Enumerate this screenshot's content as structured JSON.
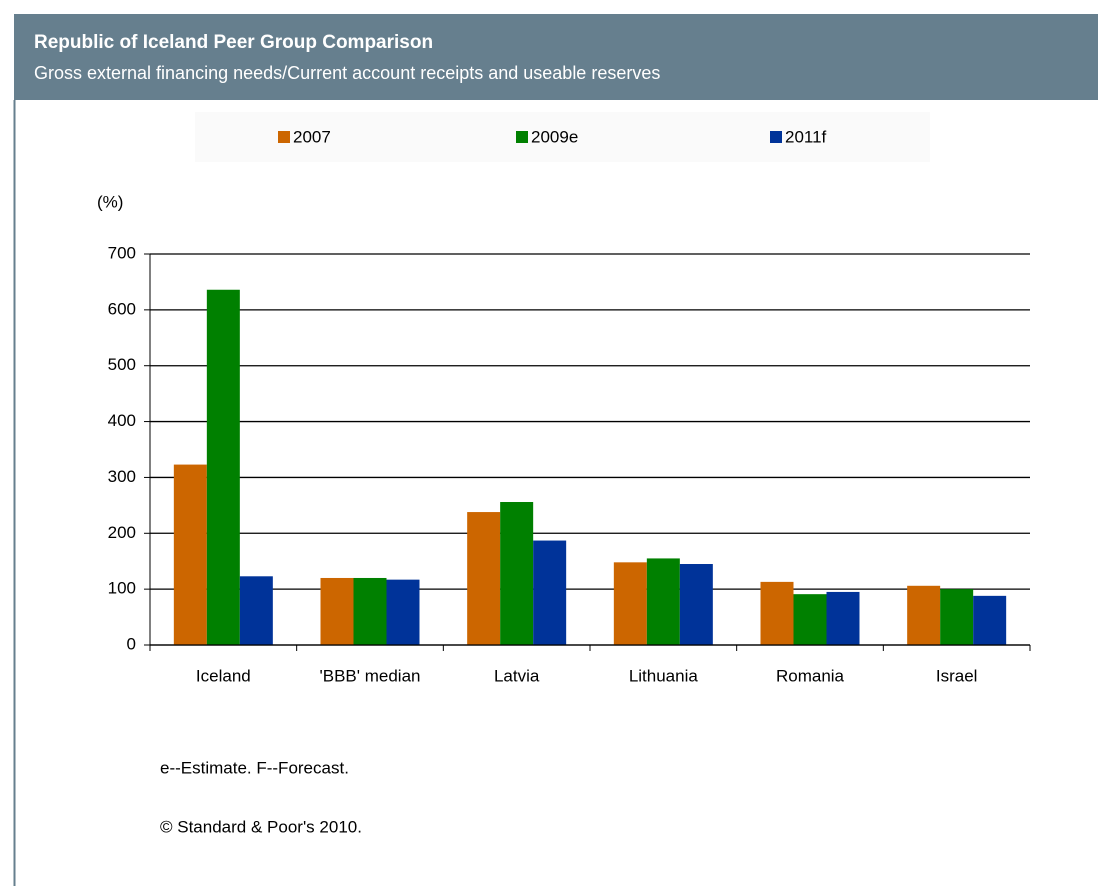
{
  "chart_data": {
    "type": "bar",
    "title": "Republic of Iceland Peer Group Comparison",
    "subtitle": "Gross external financing needs/Current account receipts and useable reserves",
    "y_label": "(%)",
    "categories": [
      "Iceland",
      "'BBB' median",
      "Latvia",
      "Lithuania",
      "Romania",
      "Israel"
    ],
    "series": [
      {
        "name": "2007",
        "color": "#cc6600",
        "values": [
          323,
          120,
          238,
          148,
          113,
          106
        ]
      },
      {
        "name": "2009e",
        "color": "#008000",
        "values": [
          636,
          120,
          256,
          155,
          91,
          100
        ]
      },
      {
        "name": "2011f",
        "color": "#003399",
        "values": [
          123,
          117,
          187,
          145,
          95,
          88
        ]
      }
    ],
    "ylim": [
      0,
      700
    ],
    "yticks": [
      0,
      100,
      200,
      300,
      400,
      500,
      600,
      700
    ],
    "grid": true,
    "notes": [
      "e--Estimate. F--Forecast.",
      "© Standard & Poor's 2010."
    ]
  }
}
